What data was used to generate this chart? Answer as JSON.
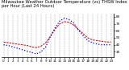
{
  "title": "Milwaukee Weather Outdoor Temperature (vs) THSW Index per Hour (Last 24 Hours)",
  "hours": [
    0,
    1,
    2,
    3,
    4,
    5,
    6,
    7,
    8,
    9,
    10,
    11,
    12,
    13,
    14,
    15,
    16,
    17,
    18,
    19,
    20,
    21,
    22,
    23
  ],
  "temp": [
    44,
    43,
    42,
    41,
    40,
    39,
    37,
    36,
    38,
    43,
    52,
    62,
    70,
    73,
    72,
    68,
    62,
    56,
    50,
    47,
    46,
    45,
    44,
    44
  ],
  "thsw": [
    40,
    39,
    37,
    35,
    33,
    31,
    29,
    27,
    30,
    37,
    52,
    64,
    74,
    78,
    76,
    71,
    61,
    53,
    46,
    43,
    41,
    40,
    40,
    40
  ],
  "temp_color": "#cc0000",
  "thsw_color": "#0000cc",
  "bg_color": "#ffffff",
  "grid_color": "#999999",
  "ylim_min": 22,
  "ylim_max": 84,
  "y_ticks": [
    30,
    40,
    50,
    60,
    70,
    80
  ],
  "title_fontsize": 3.8,
  "tick_fontsize": 3.0
}
